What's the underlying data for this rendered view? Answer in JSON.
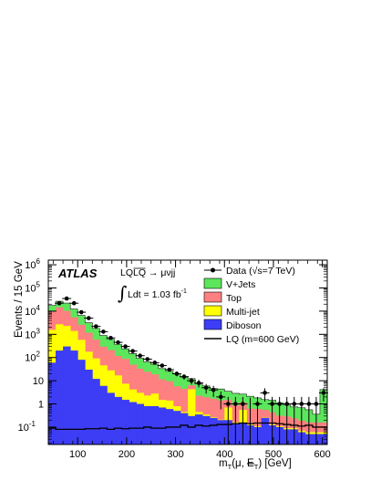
{
  "chart_data": {
    "type": "histogram-stacked",
    "ylabel": "Events / 15 GeV",
    "xlabel": "m_T(μ, E_T^miss) [GeV]",
    "xlabel_main": "m",
    "xlabel_sub": "T",
    "xlabel_args": "(μ, ",
    "xlabel_met": "E",
    "xlabel_met_sub": "T",
    "xlabel_tail": ") [GeV]",
    "xlim": [
      40,
      610
    ],
    "ylim_log10": [
      -1.75,
      6.2
    ],
    "yscale": "log",
    "xticks": [
      100,
      200,
      300,
      400,
      500,
      600
    ],
    "xtick_labels": [
      "100",
      "200",
      "300",
      "400",
      "500",
      "600"
    ],
    "yticks_exp": [
      -1,
      0,
      1,
      2,
      3,
      4,
      5,
      6
    ],
    "ytick_labels": [
      {
        "base": "10",
        "exp": "-1"
      },
      {
        "base": "1",
        "exp": ""
      },
      {
        "base": "10",
        "exp": ""
      },
      {
        "base": "10",
        "exp": "2"
      },
      {
        "base": "10",
        "exp": "3"
      },
      {
        "base": "10",
        "exp": "4"
      },
      {
        "base": "10",
        "exp": "5"
      },
      {
        "base": "10",
        "exp": "6"
      }
    ],
    "bin_edges": [
      40,
      55,
      70,
      85,
      100,
      115,
      130,
      145,
      160,
      175,
      190,
      205,
      220,
      235,
      250,
      265,
      280,
      295,
      310,
      325,
      340,
      355,
      370,
      385,
      400,
      415,
      430,
      445,
      460,
      475,
      490,
      505,
      520,
      535,
      550,
      565,
      580,
      595,
      610
    ],
    "series": [
      {
        "name": "Diboson",
        "color": "#3d3df5",
        "values": [
          60,
          200,
          300,
          200,
          80,
          30,
          12,
          6,
          3,
          2,
          1.5,
          1.2,
          1,
          0.8,
          0.8,
          0.7,
          0.6,
          0.5,
          0.4,
          0.3,
          0.35,
          0.3,
          0.25,
          0.2,
          0.2,
          0.15,
          0.15,
          0.12,
          0.1,
          0.25,
          0.12,
          0.1,
          0.08,
          0.08,
          0.06,
          0.05,
          0.05,
          0.05
        ]
      },
      {
        "name": "Multi-jet",
        "color": "#ffff00",
        "values": [
          1500,
          2500,
          2000,
          1200,
          500,
          150,
          80,
          40,
          25,
          15,
          6,
          3,
          2,
          1.5,
          2,
          0.8,
          0.8,
          0.3,
          0.05,
          4,
          0.1,
          0.05,
          0.02,
          0.01,
          0.5,
          0.01,
          0.4,
          0.01,
          0.01,
          0.01,
          0.01,
          0.01,
          0.01,
          0.01,
          0.01,
          0.01,
          0.01,
          0.01
        ]
      },
      {
        "name": "Top",
        "color": "#ff8080",
        "values": [
          8000,
          12000,
          8000,
          4000,
          2000,
          1000,
          500,
          250,
          180,
          100,
          80,
          45,
          30,
          22,
          16,
          10,
          8,
          5,
          4,
          2,
          1.8,
          1.6,
          1.4,
          1.2,
          0.8,
          0.7,
          0.6,
          0.5,
          0.5,
          0.3,
          0.3,
          0.2,
          0.2,
          0.15,
          0.12,
          0.1,
          0.1,
          0.1
        ]
      },
      {
        "name": "V+Jets",
        "color": "#5ce65c",
        "values": [
          8000,
          12000,
          12000,
          7000,
          4000,
          2000,
          1200,
          600,
          400,
          250,
          150,
          100,
          60,
          40,
          32,
          22,
          16,
          14,
          10,
          6,
          5,
          4,
          3,
          3,
          2,
          2,
          1.5,
          1.5,
          1.2,
          1,
          1,
          0.8,
          0.6,
          0.5,
          0.5,
          0.4,
          0.2,
          4
        ]
      }
    ],
    "signal": {
      "name": "LQ (m=600 GeV)",
      "values": [
        0.09,
        0.08,
        0.08,
        0.08,
        0.08,
        0.085,
        0.085,
        0.09,
        0.08,
        0.09,
        0.085,
        0.09,
        0.09,
        0.1,
        0.09,
        0.09,
        0.1,
        0.1,
        0.12,
        0.1,
        0.12,
        0.11,
        0.12,
        0.13,
        0.13,
        0.14,
        0.15,
        0.14,
        0.15,
        0.15,
        0.15,
        0.14,
        0.13,
        0.12,
        0.11,
        0.12,
        0.1,
        0.1
      ]
    },
    "data": {
      "name": "Data (√s=7 TeV)",
      "x": [
        62.5,
        77.5,
        92.5,
        107.5,
        122.5,
        137.5,
        152.5,
        167.5,
        182.5,
        197.5,
        212.5,
        227.5,
        242.5,
        257.5,
        272.5,
        287.5,
        302.5,
        317.5,
        332.5,
        347.5,
        362.5,
        377.5,
        392.5,
        407.5,
        422.5,
        437.5,
        452.5,
        467.5,
        482.5,
        497.5,
        512.5,
        527.5,
        542.5,
        557.5,
        572.5,
        587.5,
        602.5
      ],
      "y": [
        22000,
        35000,
        22000,
        9000,
        5000,
        2200,
        1300,
        700,
        450,
        300,
        190,
        120,
        85,
        60,
        45,
        30,
        20,
        15,
        10,
        8,
        5,
        4,
        2,
        1,
        1,
        1,
        0,
        1,
        3,
        1,
        1,
        1,
        1,
        1,
        1,
        1,
        3
      ]
    },
    "annotations": {
      "atlas": "ATLAS",
      "process_pre": "LQ",
      "process_bar": "LQ",
      "process_post": " → μνjj",
      "integral": "∫",
      "lumi": "Ldt = 1.03 fb",
      "lumi_exp": "-1"
    },
    "legend": [
      {
        "label": "Data (√s=7 TeV)",
        "kind": "marker"
      },
      {
        "label": "V+Jets",
        "kind": "box",
        "color": "#5ce65c"
      },
      {
        "label": "Top",
        "kind": "box",
        "color": "#ff8080"
      },
      {
        "label": "Multi-jet",
        "kind": "box",
        "color": "#ffff00"
      },
      {
        "label": "Diboson",
        "kind": "box",
        "color": "#3d3df5"
      },
      {
        "label": "LQ (m=600 GeV)",
        "kind": "line"
      }
    ],
    "legend_position": "top-right"
  }
}
